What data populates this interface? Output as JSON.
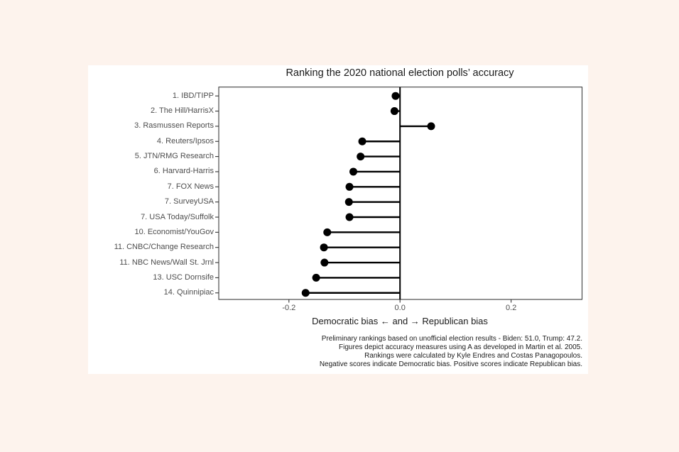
{
  "page": {
    "background_color": "#fdf3ed",
    "figure_background_color": "#ffffff"
  },
  "chart_data": {
    "type": "lollipop",
    "title": "Ranking the 2020 national election polls’ accuracy",
    "xlabel": "Democratic bias ← and → Republican bias",
    "categories": [
      "1. IBD/TIPP",
      "2. The Hill/HarrisX",
      "3. Rasmussen Reports",
      "4. Reuters/Ipsos",
      "5. JTN/RMG Research",
      "6. Harvard-Harris",
      "7. FOX News",
      "7. SurveyUSA",
      "7. USA Today/Suffolk",
      "10. Economist/YouGov",
      "11. CNBC/Change Research",
      "11. NBC News/Wall St. Jrnl",
      "13. USC Dornsife",
      "14. Quinnipiac"
    ],
    "values": [
      -0.008,
      -0.01,
      0.056,
      -0.068,
      -0.071,
      -0.084,
      -0.091,
      -0.092,
      -0.091,
      -0.131,
      -0.137,
      -0.136,
      -0.151,
      -0.17
    ],
    "baseline": 0,
    "x_ticks": [
      -0.2,
      0.0,
      0.2
    ],
    "x_tick_labels": [
      "-0.2",
      "0.0",
      "0.2"
    ],
    "xlim": [
      -0.326,
      0.327
    ],
    "grid": false,
    "legend": "none",
    "colors": {
      "point": "#000000",
      "stem": "#000000",
      "zero_line": "#000000",
      "panel_border": "#3d3d3d",
      "tick_mark": "#333333",
      "axis_text": "#4d4d4d",
      "title_text": "#1a1a1a"
    },
    "caption_lines": [
      "Preliminary rankings based on unofficial election results - Biden: 51.0, Trump: 47.2.",
      "Figures depict accuracy measures using A as developed in Martin et al. 2005.",
      "Rankings were calculated by Kyle Endres and Costas Panagopoulos.",
      "Negative scores indicate Democratic bias. Positive scores indicate Republican bias."
    ]
  }
}
